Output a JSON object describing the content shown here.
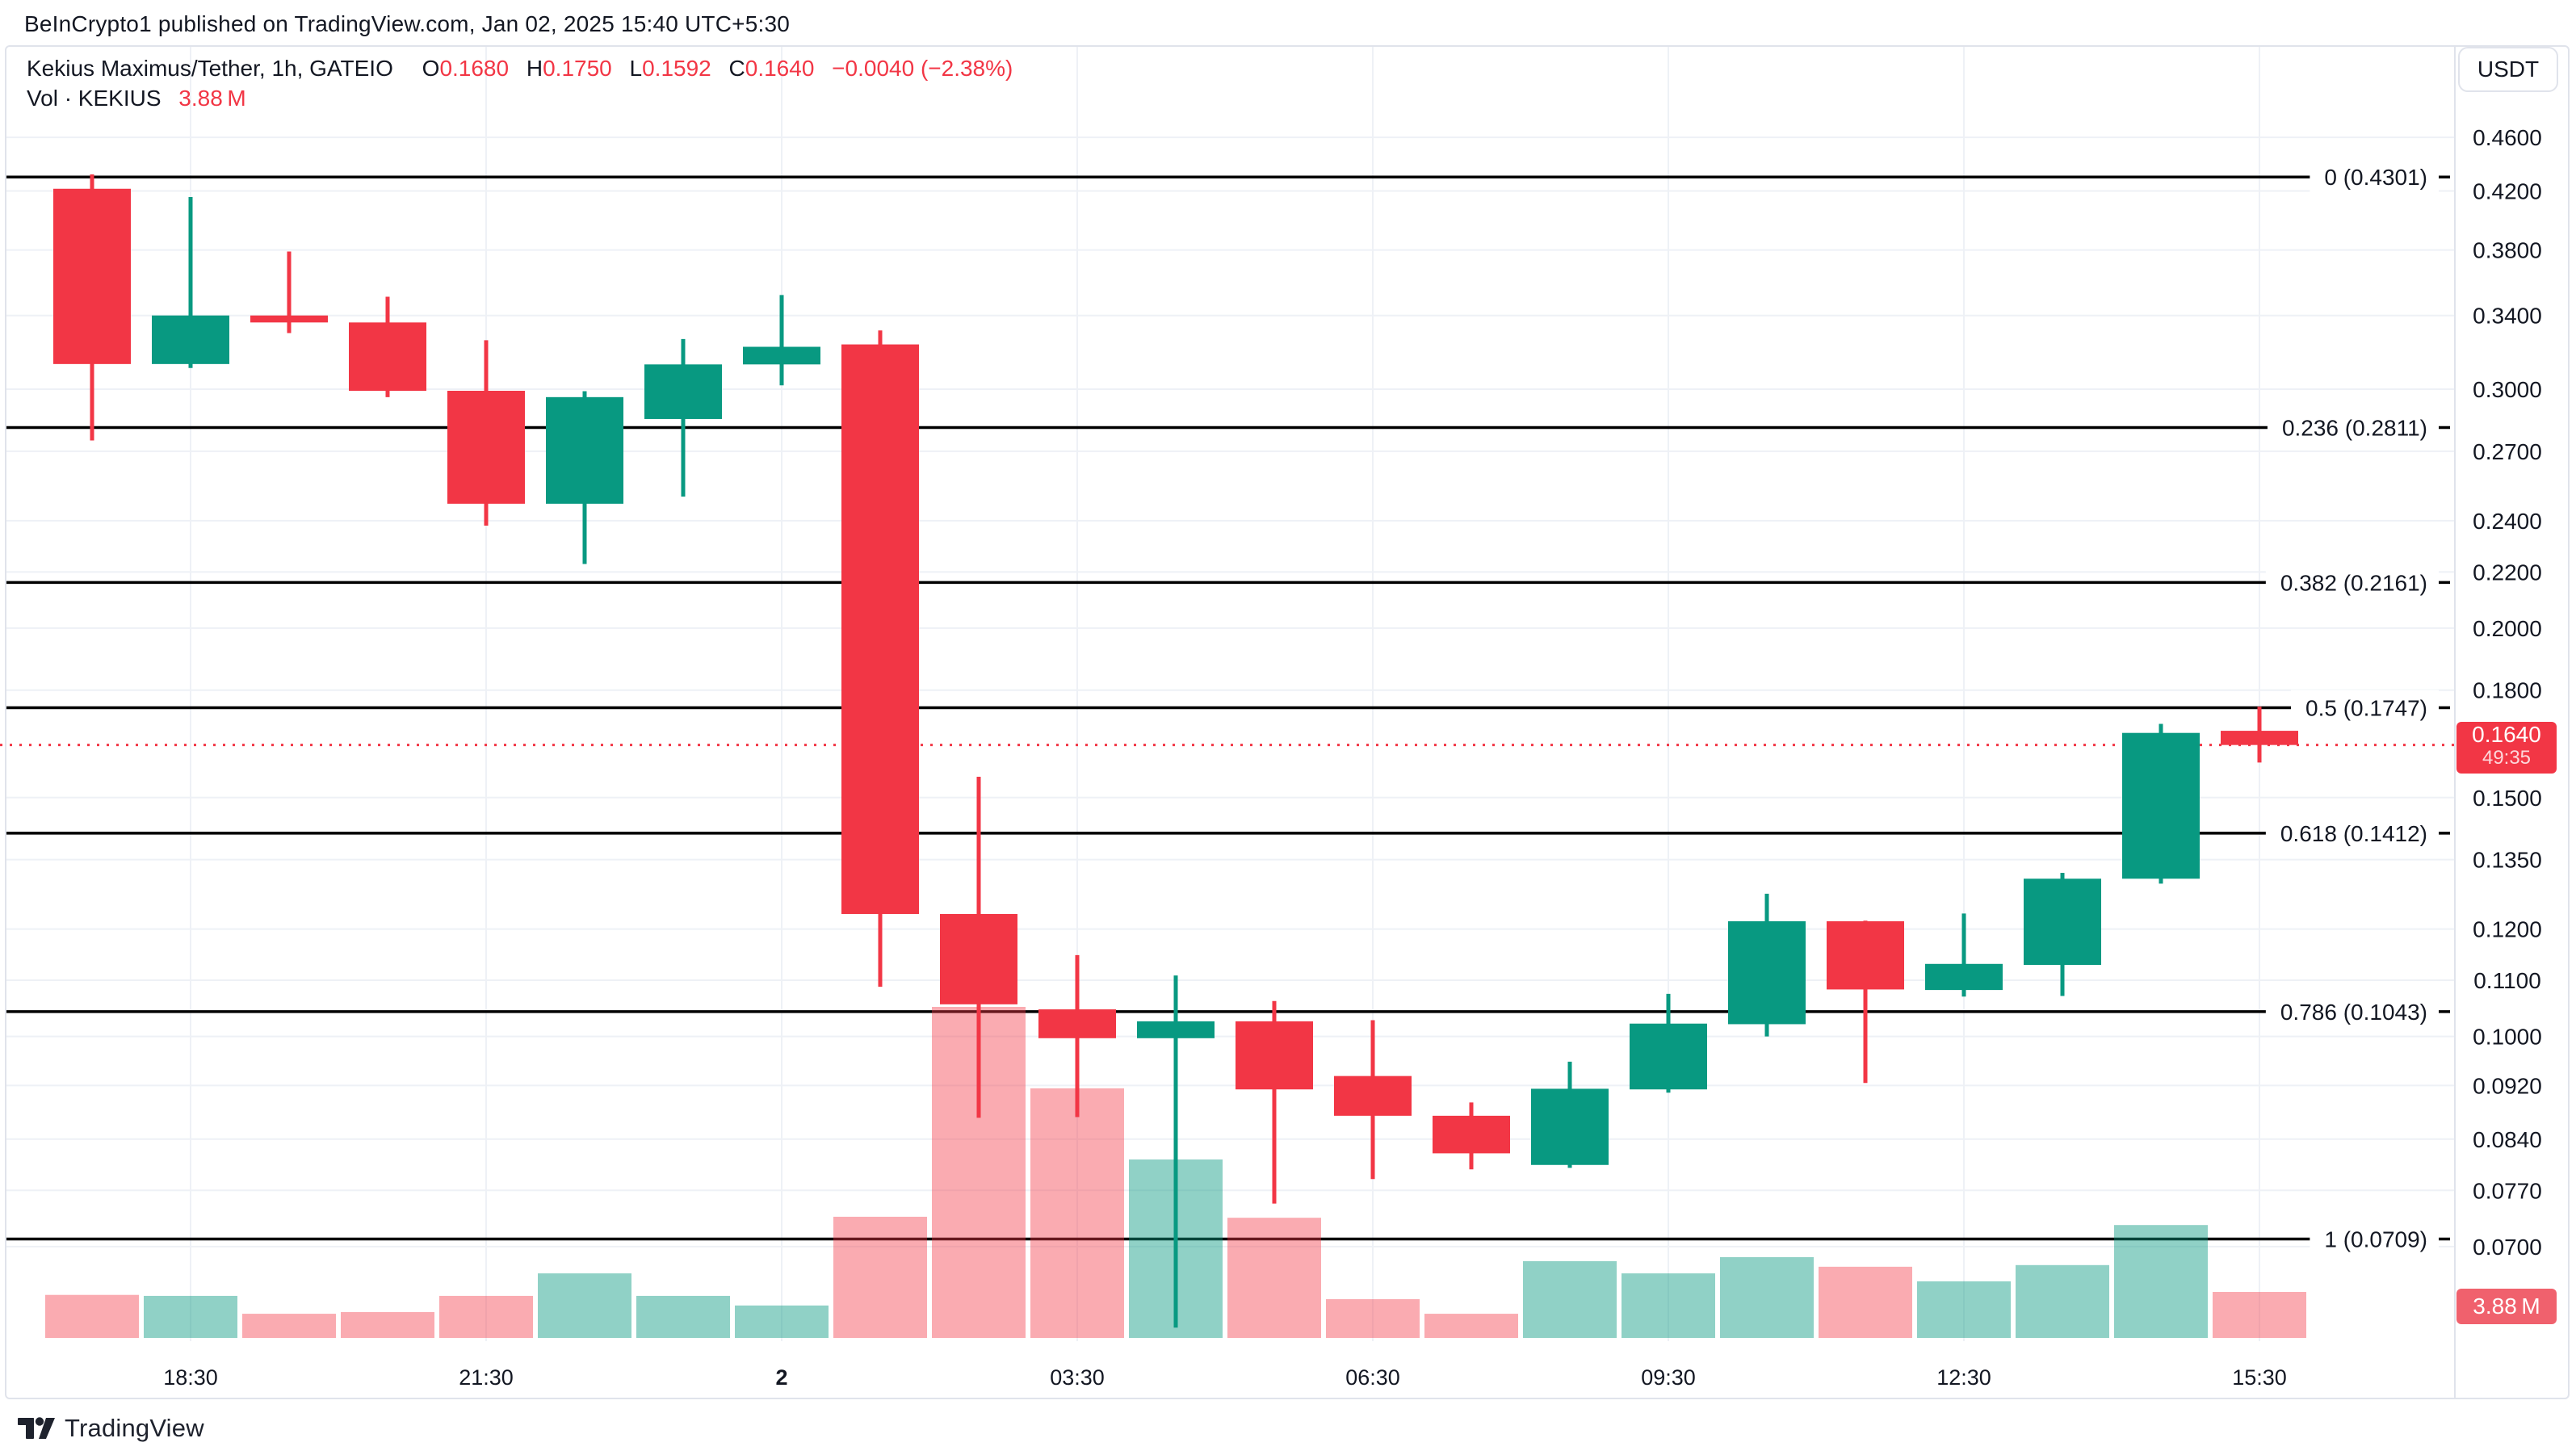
{
  "header": {
    "attribution": "BeInCrypto1 published on TradingView.com, Jan 02, 2025 15:40 UTC+5:30"
  },
  "legend": {
    "symbol_line": {
      "title": "Kekius Maximus/Tether, 1h, GATEIO",
      "o_label": "O",
      "o": "0.1680",
      "h_label": "H",
      "h": "0.1750",
      "l_label": "L",
      "l": "0.1592",
      "c_label": "C",
      "c": "0.1640",
      "change": "−0.0040 (−2.38%)"
    },
    "volume_line": {
      "label": "Vol · KEKIUS",
      "value": "3.88 M"
    }
  },
  "price_scale": {
    "currency_button": "USDT",
    "ticks": [
      {
        "label": "0.4600",
        "price": 0.46
      },
      {
        "label": "0.4200",
        "price": 0.42
      },
      {
        "label": "0.3800",
        "price": 0.38
      },
      {
        "label": "0.3400",
        "price": 0.34
      },
      {
        "label": "0.3000",
        "price": 0.3
      },
      {
        "label": "0.2700",
        "price": 0.27
      },
      {
        "label": "0.2400",
        "price": 0.24
      },
      {
        "label": "0.2200",
        "price": 0.22
      },
      {
        "label": "0.2000",
        "price": 0.2
      },
      {
        "label": "0.1800",
        "price": 0.18
      },
      {
        "label": "0.1500",
        "price": 0.15
      },
      {
        "label": "0.1350",
        "price": 0.135
      },
      {
        "label": "0.1200",
        "price": 0.12
      },
      {
        "label": "0.1100",
        "price": 0.11
      },
      {
        "label": "0.1000",
        "price": 0.1
      },
      {
        "label": "0.0920",
        "price": 0.092
      },
      {
        "label": "0.0840",
        "price": 0.084
      },
      {
        "label": "0.0770",
        "price": 0.077
      },
      {
        "label": "0.0700",
        "price": 0.07
      }
    ],
    "last_price_badge": {
      "price": "0.1640",
      "countdown": "49:35"
    },
    "volume_badge": "3.88 M"
  },
  "time_scale": {
    "ticks": [
      {
        "index": 1,
        "label": "18:30",
        "bold": false
      },
      {
        "index": 4,
        "label": "21:30",
        "bold": false
      },
      {
        "index": 7,
        "label": "2",
        "bold": true
      },
      {
        "index": 10,
        "label": "03:30",
        "bold": false
      },
      {
        "index": 13,
        "label": "06:30",
        "bold": false
      },
      {
        "index": 16,
        "label": "09:30",
        "bold": false
      },
      {
        "index": 19,
        "label": "12:30",
        "bold": false
      },
      {
        "index": 22,
        "label": "15:30",
        "bold": false
      }
    ]
  },
  "footer": {
    "brand": "TradingView"
  },
  "colors": {
    "up": "#089981",
    "down": "#f23645",
    "vol_up": "rgba(8,153,129,0.45)",
    "vol_down": "rgba(242,54,69,0.42)",
    "grid": "#eef1f6",
    "frame": "#e0e3eb",
    "text": "#131722",
    "fib_line": "#000000",
    "current_price_line": "#f23645"
  },
  "chart_data": {
    "type": "candlestick",
    "title": "Kekius Maximus/Tether, 1h, GATEIO",
    "interval": "1h",
    "y_axis": {
      "scale": "log",
      "unit": "USDT",
      "visible_range": [
        0.06,
        0.535
      ]
    },
    "legend_position": "top-left",
    "grid": true,
    "current_price": 0.164,
    "current_volume_label": "3.88 M",
    "fib_levels": [
      {
        "label": "0 (0.4301)",
        "price": 0.4301
      },
      {
        "label": "0.236 (0.2811)",
        "price": 0.2811
      },
      {
        "label": "0.382 (0.2161)",
        "price": 0.2161
      },
      {
        "label": "0.5 (0.1747)",
        "price": 0.1747
      },
      {
        "label": "0.618 (0.1412)",
        "price": 0.1412
      },
      {
        "label": "0.786 (0.1043)",
        "price": 0.1043
      },
      {
        "label": "1 (0.0709)",
        "price": 0.0709
      }
    ],
    "candles": [
      {
        "time": "Jan 1 17:30",
        "o": 0.4216,
        "h": 0.432,
        "l": 0.275,
        "c": 0.3131,
        "v": 0.13
      },
      {
        "time": "Jan 1 18:30",
        "o": 0.3131,
        "h": 0.4157,
        "l": 0.311,
        "c": 0.34,
        "v": 0.127
      },
      {
        "time": "Jan 1 19:30",
        "o": 0.34,
        "h": 0.379,
        "l": 0.33,
        "c": 0.336,
        "v": 0.073
      },
      {
        "time": "Jan 1 20:30",
        "o": 0.336,
        "h": 0.351,
        "l": 0.296,
        "c": 0.2992,
        "v": 0.078
      },
      {
        "time": "Jan 1 21:30",
        "o": 0.2992,
        "h": 0.326,
        "l": 0.238,
        "c": 0.247,
        "v": 0.127
      },
      {
        "time": "Jan 1 22:30",
        "o": 0.247,
        "h": 0.299,
        "l": 0.223,
        "c": 0.296,
        "v": 0.195
      },
      {
        "time": "Jan 1 23:30",
        "o": 0.2852,
        "h": 0.3267,
        "l": 0.25,
        "c": 0.3129,
        "v": 0.127
      },
      {
        "time": "Jan 2 00:30",
        "o": 0.3129,
        "h": 0.352,
        "l": 0.302,
        "c": 0.3224,
        "v": 0.098
      },
      {
        "time": "Jan 2 01:30",
        "o": 0.3237,
        "h": 0.3315,
        "l": 0.1088,
        "c": 0.1231,
        "v": 0.366
      },
      {
        "time": "Jan 2 02:30",
        "o": 0.1231,
        "h": 0.1554,
        "l": 0.0871,
        "c": 0.1056,
        "v": 1.0
      },
      {
        "time": "Jan 2 03:30",
        "o": 0.1047,
        "h": 0.1148,
        "l": 0.0872,
        "c": 0.0997,
        "v": 0.754
      },
      {
        "time": "Jan 2 04:30",
        "o": 0.0997,
        "h": 0.1109,
        "l": 0.061,
        "c": 0.1026,
        "v": 0.539
      },
      {
        "time": "Jan 2 05:30",
        "o": 0.1026,
        "h": 0.1062,
        "l": 0.0753,
        "c": 0.0914,
        "v": 0.363
      },
      {
        "time": "Jan 2 06:30",
        "o": 0.0935,
        "h": 0.1028,
        "l": 0.0785,
        "c": 0.0874,
        "v": 0.117
      },
      {
        "time": "Jan 2 07:30",
        "o": 0.0874,
        "h": 0.0894,
        "l": 0.0798,
        "c": 0.082,
        "v": 0.073
      },
      {
        "time": "Jan 2 08:30",
        "o": 0.0804,
        "h": 0.0958,
        "l": 0.08,
        "c": 0.0915,
        "v": 0.232
      },
      {
        "time": "Jan 2 09:30",
        "o": 0.0914,
        "h": 0.1075,
        "l": 0.0909,
        "c": 0.1022,
        "v": 0.195
      },
      {
        "time": "Jan 2 10:30",
        "o": 0.1021,
        "h": 0.1274,
        "l": 0.1,
        "c": 0.1216,
        "v": 0.244
      },
      {
        "time": "Jan 2 11:30",
        "o": 0.1216,
        "h": 0.1217,
        "l": 0.0924,
        "c": 0.1083,
        "v": 0.215
      },
      {
        "time": "Jan 2 12:30",
        "o": 0.1082,
        "h": 0.1232,
        "l": 0.107,
        "c": 0.1131,
        "v": 0.171
      },
      {
        "time": "Jan 2 13:30",
        "o": 0.1129,
        "h": 0.132,
        "l": 0.1071,
        "c": 0.1307,
        "v": 0.22
      },
      {
        "time": "Jan 2 14:30",
        "o": 0.1307,
        "h": 0.17,
        "l": 0.1296,
        "c": 0.1674,
        "v": 0.341
      },
      {
        "time": "Jan 2 15:30",
        "o": 0.168,
        "h": 0.175,
        "l": 0.1592,
        "c": 0.164,
        "v": 0.139
      }
    ]
  }
}
